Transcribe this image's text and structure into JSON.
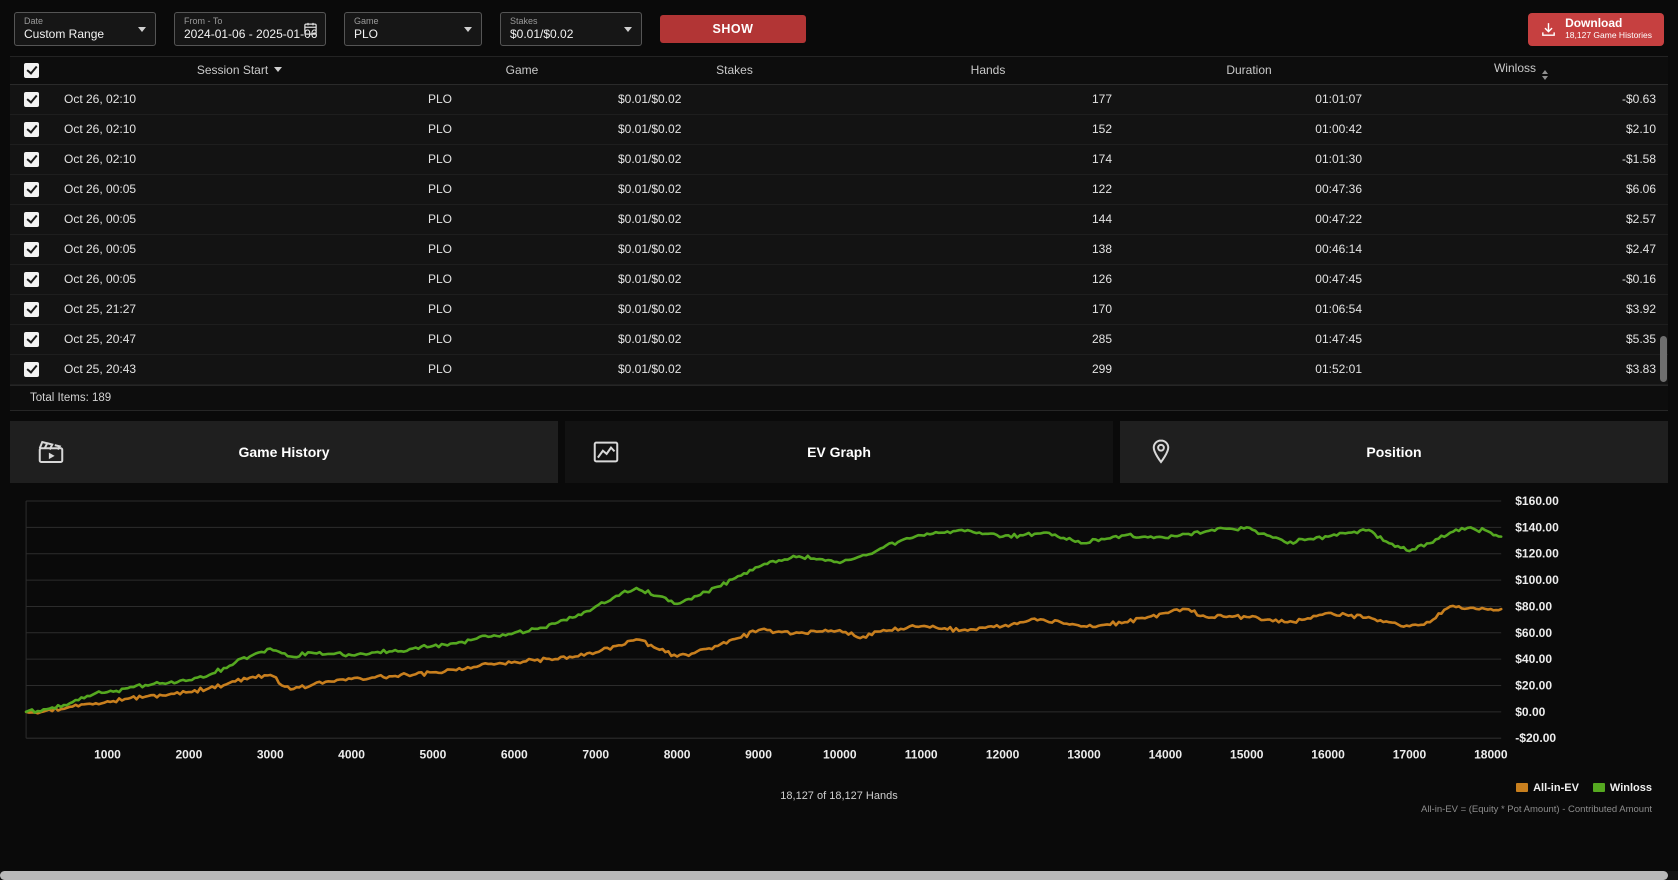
{
  "filters": {
    "date": {
      "label": "Date",
      "value": "Custom Range"
    },
    "from_to": {
      "label": "From - To",
      "value": "2024-01-06 - 2025-01-06"
    },
    "game": {
      "label": "Game",
      "value": "PLO"
    },
    "stakes": {
      "label": "Stakes",
      "value": "$0.01/$0.02"
    },
    "show_label": "SHOW"
  },
  "download": {
    "label": "Download",
    "sublabel": "18,127 Game Histories"
  },
  "table": {
    "columns": {
      "session_start": "Session Start",
      "game": "Game",
      "stakes": "Stakes",
      "hands": "Hands",
      "duration": "Duration",
      "winloss": "Winloss"
    },
    "rows": [
      {
        "checked": true,
        "session_start": "Oct 26, 02:10",
        "game": "PLO",
        "stakes": "$0.01/$0.02",
        "hands": "177",
        "duration": "01:01:07",
        "winloss": "-$0.63"
      },
      {
        "checked": true,
        "session_start": "Oct 26, 02:10",
        "game": "PLO",
        "stakes": "$0.01/$0.02",
        "hands": "152",
        "duration": "01:00:42",
        "winloss": "$2.10"
      },
      {
        "checked": true,
        "session_start": "Oct 26, 02:10",
        "game": "PLO",
        "stakes": "$0.01/$0.02",
        "hands": "174",
        "duration": "01:01:30",
        "winloss": "-$1.58"
      },
      {
        "checked": true,
        "session_start": "Oct 26, 00:05",
        "game": "PLO",
        "stakes": "$0.01/$0.02",
        "hands": "122",
        "duration": "00:47:36",
        "winloss": "$6.06"
      },
      {
        "checked": true,
        "session_start": "Oct 26, 00:05",
        "game": "PLO",
        "stakes": "$0.01/$0.02",
        "hands": "144",
        "duration": "00:47:22",
        "winloss": "$2.57"
      },
      {
        "checked": true,
        "session_start": "Oct 26, 00:05",
        "game": "PLO",
        "stakes": "$0.01/$0.02",
        "hands": "138",
        "duration": "00:46:14",
        "winloss": "$2.47"
      },
      {
        "checked": true,
        "session_start": "Oct 26, 00:05",
        "game": "PLO",
        "stakes": "$0.01/$0.02",
        "hands": "126",
        "duration": "00:47:45",
        "winloss": "-$0.16"
      },
      {
        "checked": true,
        "session_start": "Oct 25, 21:27",
        "game": "PLO",
        "stakes": "$0.01/$0.02",
        "hands": "170",
        "duration": "01:06:54",
        "winloss": "$3.92"
      },
      {
        "checked": true,
        "session_start": "Oct 25, 20:47",
        "game": "PLO",
        "stakes": "$0.01/$0.02",
        "hands": "285",
        "duration": "01:47:45",
        "winloss": "$5.35"
      },
      {
        "checked": true,
        "session_start": "Oct 25, 20:43",
        "game": "PLO",
        "stakes": "$0.01/$0.02",
        "hands": "299",
        "duration": "01:52:01",
        "winloss": "$3.83"
      }
    ],
    "total_items_label": "Total Items: 189"
  },
  "tabs": [
    {
      "label": "Game History",
      "active": false
    },
    {
      "label": "EV Graph",
      "active": true
    },
    {
      "label": "Position",
      "active": false
    }
  ],
  "chart_data": {
    "type": "line",
    "title": "",
    "xlabel": "",
    "ylabel": "",
    "grid": "horizontal",
    "legend_position": "bottom-right",
    "xlim": [
      0,
      18127
    ],
    "ylim": [
      -20,
      160
    ],
    "x_ticks": [
      1000,
      2000,
      3000,
      4000,
      5000,
      6000,
      7000,
      8000,
      9000,
      10000,
      11000,
      12000,
      13000,
      14000,
      15000,
      16000,
      17000,
      18000
    ],
    "y_ticks": [
      {
        "v": 160,
        "label": "$160.00"
      },
      {
        "v": 140,
        "label": "$140.00"
      },
      {
        "v": 120,
        "label": "$120.00"
      },
      {
        "v": 100,
        "label": "$100.00"
      },
      {
        "v": 80,
        "label": "$80.00"
      },
      {
        "v": 60,
        "label": "$60.00"
      },
      {
        "v": 40,
        "label": "$40.00"
      },
      {
        "v": 20,
        "label": "$20.00"
      },
      {
        "v": 0,
        "label": "$0.00"
      },
      {
        "v": -20,
        "label": "-$20.00"
      }
    ],
    "x": [
      0,
      250,
      500,
      750,
      1000,
      1250,
      1500,
      1750,
      2000,
      2250,
      2500,
      2750,
      3000,
      3250,
      3500,
      3750,
      4000,
      4250,
      4500,
      4750,
      5000,
      5250,
      5500,
      5750,
      6000,
      6250,
      6500,
      6750,
      7000,
      7250,
      7500,
      7750,
      8000,
      8250,
      8500,
      8750,
      9000,
      9250,
      9500,
      9750,
      10000,
      10250,
      10500,
      10750,
      11000,
      11250,
      11500,
      11750,
      12000,
      12250,
      12500,
      12750,
      13000,
      13250,
      13500,
      13750,
      14000,
      14250,
      14500,
      14750,
      15000,
      15250,
      15500,
      15750,
      16000,
      16250,
      16500,
      16750,
      17000,
      17250,
      17500,
      17750,
      18000,
      18127
    ],
    "series": [
      {
        "name": "All-in-EV",
        "color": "#c87f1e",
        "values": [
          0,
          1,
          3,
          6,
          8,
          10,
          12,
          13,
          15,
          18,
          22,
          26,
          28,
          17,
          20,
          23,
          25,
          26,
          27,
          28,
          30,
          32,
          34,
          36,
          38,
          39,
          40,
          42,
          45,
          50,
          55,
          48,
          42,
          46,
          50,
          56,
          62,
          61,
          60,
          61,
          62,
          56,
          61,
          63,
          65,
          63,
          62,
          64,
          65,
          68,
          70,
          67,
          65,
          66,
          68,
          71,
          75,
          78,
          72,
          72,
          72,
          70,
          68,
          71,
          75,
          73,
          72,
          68,
          65,
          68,
          80,
          79,
          78,
          78
        ]
      },
      {
        "name": "Winloss",
        "color": "#55a820",
        "values": [
          0,
          2,
          5,
          12,
          15,
          18,
          20,
          22,
          24,
          28,
          35,
          42,
          48,
          42,
          45,
          44,
          43,
          45,
          46,
          48,
          50,
          52,
          55,
          58,
          60,
          63,
          67,
          72,
          80,
          88,
          94,
          88,
          82,
          88,
          95,
          103,
          110,
          115,
          118,
          116,
          113,
          118,
          124,
          130,
          134,
          136,
          138,
          135,
          133,
          134,
          136,
          132,
          128,
          131,
          134,
          133,
          132,
          135,
          137,
          139,
          140,
          134,
          128,
          131,
          133,
          136,
          138,
          128,
          122,
          128,
          136,
          140,
          136,
          133
        ]
      }
    ],
    "hands_label": "18,127 of 18,127 Hands",
    "footnote": "All-in-EV = (Equity * Pot Amount) - Contributed Amount"
  },
  "colors": {
    "show_button": "#b23535",
    "download_button": "#c64040",
    "ev_line": "#c87f1e",
    "winloss_line": "#55a820"
  }
}
